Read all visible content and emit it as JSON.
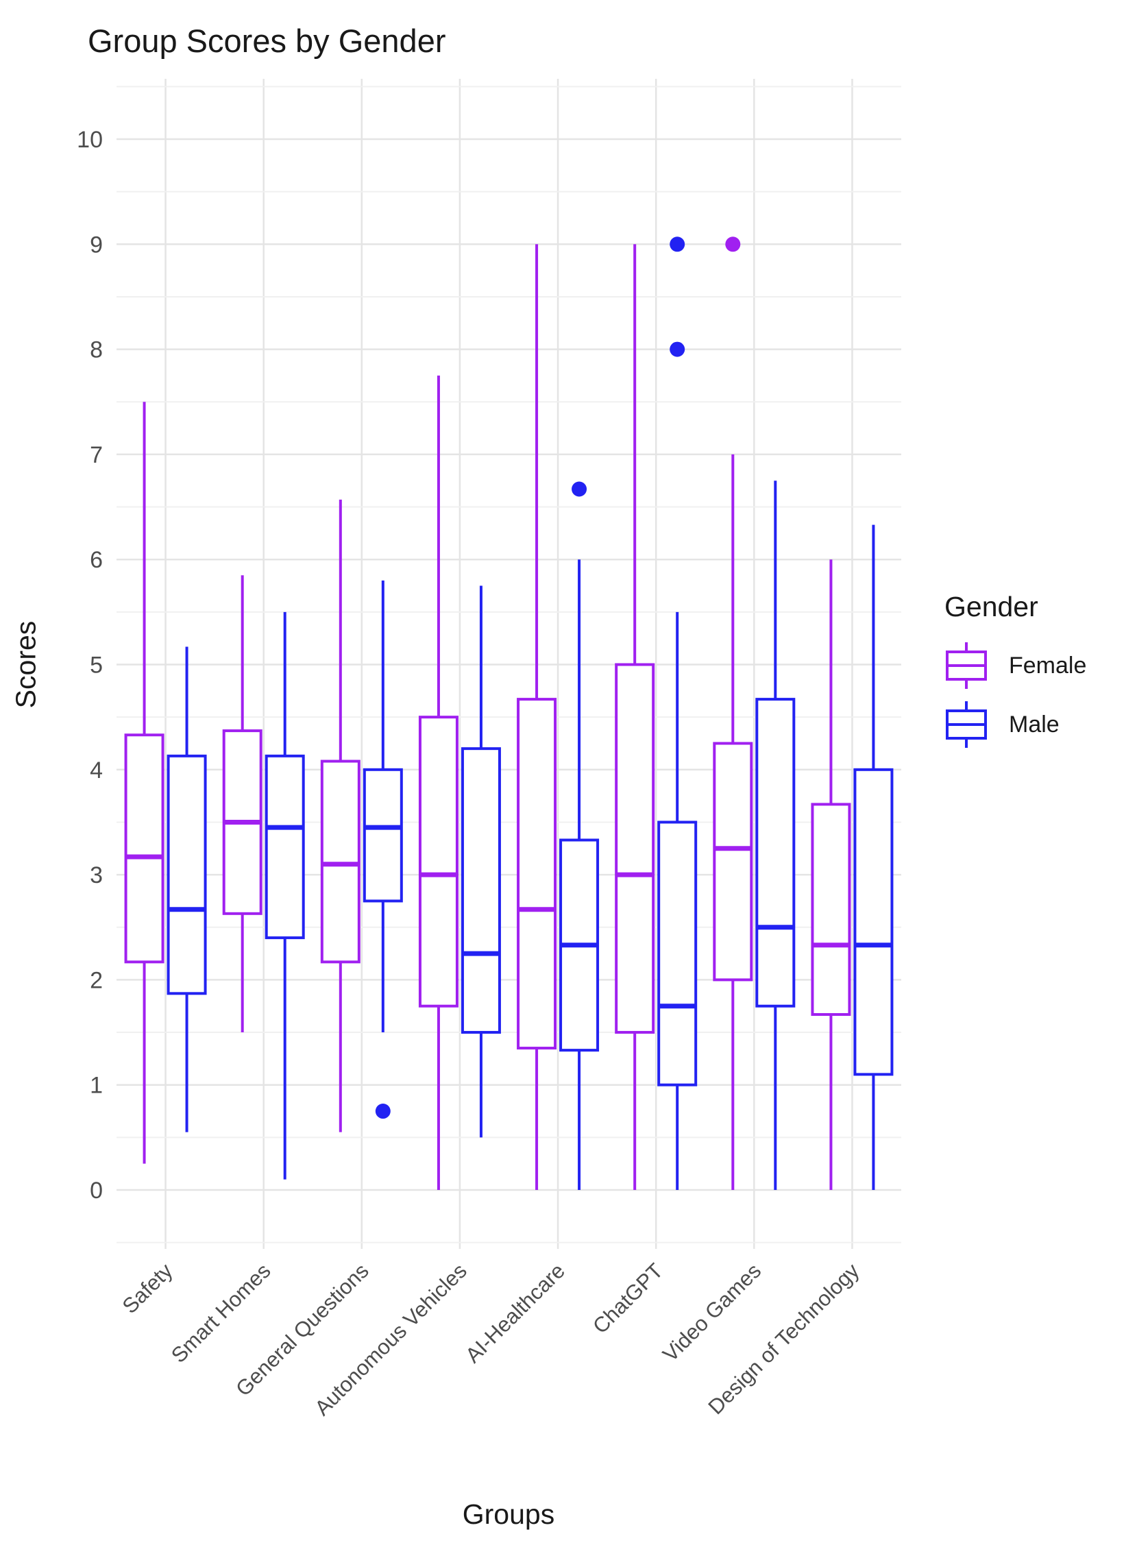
{
  "title": "Group Scores by Gender",
  "axes": {
    "x_title": "Groups",
    "y_title": "Scores"
  },
  "legend": {
    "title": "Gender",
    "entries": [
      {
        "label": "Female",
        "color": "#A020F0"
      },
      {
        "label": "Male",
        "color": "#2222F2"
      }
    ]
  },
  "chart_data": {
    "type": "boxplot",
    "title": "Group Scores by Gender",
    "xlabel": "Groups",
    "ylabel": "Scores",
    "ylim": [
      0,
      10
    ],
    "yticks": [
      0,
      1,
      2,
      3,
      4,
      5,
      6,
      7,
      8,
      9,
      10
    ],
    "grid": "major and minor horizontal lines, vertical major per category, light gray on white",
    "legend_position": "right",
    "categories": [
      "Safety",
      "Smart Homes",
      "General Questions",
      "Autonomous Vehicles",
      "AI-Healthcare",
      "ChatGPT",
      "Video Games",
      "Design of Technology"
    ],
    "series": [
      {
        "name": "Female",
        "color": "#A020F0",
        "boxes": [
          {
            "whislo": 0.25,
            "q1": 2.17,
            "med": 3.17,
            "q3": 4.33,
            "whishi": 7.5,
            "outliers": []
          },
          {
            "whislo": 1.5,
            "q1": 2.63,
            "med": 3.5,
            "q3": 4.37,
            "whishi": 5.85,
            "outliers": []
          },
          {
            "whislo": 0.55,
            "q1": 2.17,
            "med": 3.1,
            "q3": 4.08,
            "whishi": 6.57,
            "outliers": []
          },
          {
            "whislo": 0.0,
            "q1": 1.75,
            "med": 3.0,
            "q3": 4.5,
            "whishi": 7.75,
            "outliers": []
          },
          {
            "whislo": 0.0,
            "q1": 1.35,
            "med": 2.67,
            "q3": 4.67,
            "whishi": 9.0,
            "outliers": []
          },
          {
            "whislo": 0.0,
            "q1": 1.5,
            "med": 3.0,
            "q3": 5.0,
            "whishi": 9.0,
            "outliers": []
          },
          {
            "whislo": 0.0,
            "q1": 2.0,
            "med": 3.25,
            "q3": 4.25,
            "whishi": 7.0,
            "outliers": [
              9.0
            ]
          },
          {
            "whislo": 0.0,
            "q1": 1.67,
            "med": 2.33,
            "q3": 3.67,
            "whishi": 6.0,
            "outliers": []
          }
        ]
      },
      {
        "name": "Male",
        "color": "#2222F2",
        "boxes": [
          {
            "whislo": 0.55,
            "q1": 1.87,
            "med": 2.67,
            "q3": 4.13,
            "whishi": 5.17,
            "outliers": []
          },
          {
            "whislo": 0.1,
            "q1": 2.4,
            "med": 3.45,
            "q3": 4.13,
            "whishi": 5.5,
            "outliers": []
          },
          {
            "whislo": 1.5,
            "q1": 2.75,
            "med": 3.45,
            "q3": 4.0,
            "whishi": 5.8,
            "outliers": [
              0.75
            ]
          },
          {
            "whislo": 0.5,
            "q1": 1.5,
            "med": 2.25,
            "q3": 4.2,
            "whishi": 5.75,
            "outliers": []
          },
          {
            "whislo": 0.0,
            "q1": 1.33,
            "med": 2.33,
            "q3": 3.33,
            "whishi": 6.0,
            "outliers": [
              6.67
            ]
          },
          {
            "whislo": 0.0,
            "q1": 1.0,
            "med": 1.75,
            "q3": 3.5,
            "whishi": 5.5,
            "outliers": [
              8.0,
              9.0
            ]
          },
          {
            "whislo": 0.0,
            "q1": 1.75,
            "med": 2.5,
            "q3": 4.67,
            "whishi": 6.75,
            "outliers": []
          },
          {
            "whislo": 0.0,
            "q1": 1.1,
            "med": 2.33,
            "q3": 4.0,
            "whishi": 6.33,
            "outliers": []
          }
        ]
      }
    ]
  }
}
